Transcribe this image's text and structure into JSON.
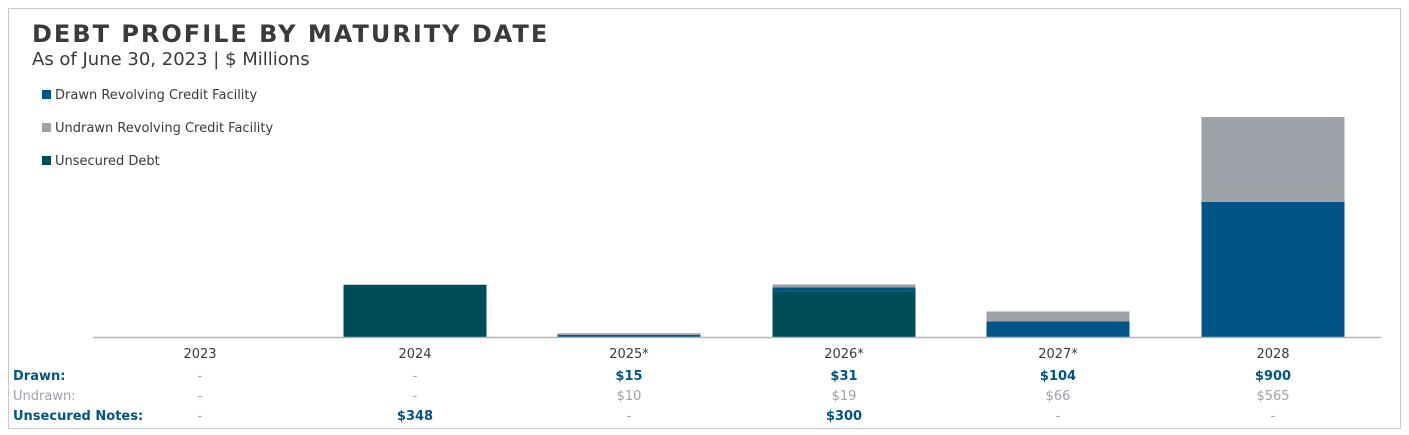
{
  "chart_data": {
    "type": "bar",
    "stacked": true,
    "title": "DEBT PROFILE BY MATURITY DATE",
    "subtitle": "As of June 30, 2023 | $ Millions",
    "categories": [
      "2023",
      "2024",
      "2025*",
      "2026*",
      "2027*",
      "2028"
    ],
    "series": [
      {
        "name": "Unsecured Debt",
        "values": [
          0,
          348,
          0,
          300,
          0,
          0
        ],
        "color": "#004d5a"
      },
      {
        "name": "Drawn Revolving Credit Facility",
        "values": [
          0,
          0,
          15,
          31,
          104,
          900
        ],
        "color": "#005587"
      },
      {
        "name": "Undrawn Revolving Credit Facility",
        "values": [
          0,
          0,
          10,
          19,
          66,
          565
        ],
        "color": "#9ea2a8"
      }
    ],
    "legend": {
      "position": "top-left",
      "order": [
        "Drawn Revolving Credit Facility",
        "Undrawn Revolving Credit Facility",
        "Unsecured Debt"
      ]
    },
    "ylim": [
      0,
      1465
    ],
    "grid": false,
    "xlabel": "",
    "ylabel": ""
  },
  "table": {
    "rows": [
      {
        "label": "Drawn:",
        "label_color": "#005587",
        "value_color": "#005587",
        "bold": true,
        "values": [
          "-",
          "-",
          "$15",
          "$31",
          "$104",
          "$900"
        ]
      },
      {
        "label": "Undrawn:",
        "label_color": "#9ea2a8",
        "value_color": "#9ea2a8",
        "bold": false,
        "values": [
          "-",
          "-",
          "$10",
          "$19",
          "$66",
          "$565"
        ]
      },
      {
        "label": "Unsecured Notes:",
        "label_color": "#005587",
        "value_color": "#005587",
        "bold": true,
        "values": [
          "-",
          "$348",
          "-",
          "$300",
          "-",
          "-"
        ]
      }
    ]
  }
}
